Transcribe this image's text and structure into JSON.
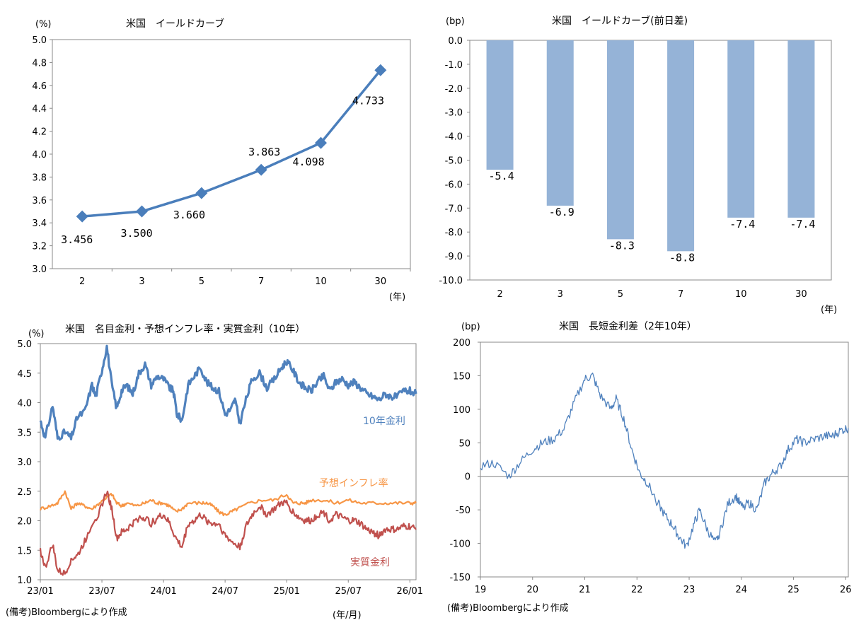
{
  "chart_data": [
    {
      "id": "yield_curve",
      "type": "line",
      "title": "米国　イールドカーブ",
      "ylabel": "(%)",
      "xlabel": "(年)",
      "categories": [
        "2",
        "3",
        "5",
        "7",
        "10",
        "30"
      ],
      "values": [
        3.456,
        3.5,
        3.66,
        3.863,
        4.098,
        4.733
      ],
      "data_labels": [
        "3.456",
        "3.500",
        "3.660",
        "3.863",
        "4.098",
        "4.733"
      ],
      "ylim": [
        3.0,
        5.0
      ],
      "yticks": [
        "3.0",
        "3.2",
        "3.4",
        "3.6",
        "3.8",
        "4.0",
        "4.2",
        "4.4",
        "4.6",
        "4.8",
        "5.0"
      ],
      "color": "#4a7ebb"
    },
    {
      "id": "yield_curve_change",
      "type": "bar",
      "title": "米国　イールドカーブ(前日差)",
      "ylabel": "(bp)",
      "xlabel": "(年)",
      "categories": [
        "2",
        "3",
        "5",
        "7",
        "10",
        "30"
      ],
      "values": [
        -5.4,
        -6.9,
        -8.3,
        -8.8,
        -7.4,
        -7.4
      ],
      "data_labels": [
        "-5.4",
        "-6.9",
        "-8.3",
        "-8.8",
        "-7.4",
        "-7.4"
      ],
      "ylim": [
        -10.0,
        0.0
      ],
      "yticks": [
        "0.0",
        "-1.0",
        "-2.0",
        "-3.0",
        "-4.0",
        "-5.0",
        "-6.0",
        "-7.0",
        "-8.0",
        "-9.0",
        "-10.0"
      ],
      "color": "#95b3d7"
    },
    {
      "id": "rates_10y",
      "type": "line",
      "title": "米国　名目金利・予想インフレ率・実質金利（10年）",
      "ylabel": "(%)",
      "xlabel": "(年/月)",
      "x_ticks": [
        "23/01",
        "23/07",
        "24/01",
        "24/07",
        "25/01",
        "25/07",
        "26/01"
      ],
      "ylim": [
        1.0,
        5.0
      ],
      "yticks": [
        "1.0",
        "1.5",
        "2.0",
        "2.5",
        "3.0",
        "3.5",
        "4.0",
        "4.5",
        "5.0"
      ],
      "series": [
        {
          "name": "10年金利",
          "color": "#4f81bd",
          "anchors": [
            [
              0,
              3.7
            ],
            [
              0.04,
              3.4
            ],
            [
              0.1,
              3.95
            ],
            [
              0.14,
              3.4
            ],
            [
              0.2,
              3.5
            ],
            [
              0.25,
              3.4
            ],
            [
              0.3,
              3.75
            ],
            [
              0.36,
              3.85
            ],
            [
              0.42,
              4.3
            ],
            [
              0.45,
              4.1
            ],
            [
              0.5,
              4.55
            ],
            [
              0.54,
              4.95
            ],
            [
              0.58,
              4.3
            ],
            [
              0.62,
              3.9
            ],
            [
              0.66,
              4.2
            ],
            [
              0.7,
              4.3
            ],
            [
              0.75,
              4.15
            ],
            [
              0.8,
              4.5
            ],
            [
              0.85,
              4.65
            ],
            [
              0.9,
              4.3
            ],
            [
              0.95,
              4.45
            ],
            [
              1.0,
              4.4
            ],
            [
              1.05,
              4.25
            ],
            [
              1.08,
              4.2
            ],
            [
              1.11,
              3.8
            ],
            [
              1.15,
              3.7
            ],
            [
              1.2,
              4.3
            ],
            [
              1.25,
              4.45
            ],
            [
              1.3,
              4.6
            ],
            [
              1.35,
              4.35
            ],
            [
              1.4,
              4.25
            ],
            [
              1.45,
              4.2
            ],
            [
              1.5,
              3.8
            ],
            [
              1.55,
              3.9
            ],
            [
              1.58,
              4.05
            ],
            [
              1.62,
              3.65
            ],
            [
              1.67,
              4.05
            ],
            [
              1.72,
              4.4
            ],
            [
              1.78,
              4.5
            ],
            [
              1.84,
              4.25
            ],
            [
              1.9,
              4.4
            ],
            [
              1.96,
              4.6
            ],
            [
              2.0,
              4.7
            ],
            [
              2.05,
              4.55
            ],
            [
              2.1,
              4.35
            ],
            [
              2.15,
              4.25
            ],
            [
              2.2,
              4.2
            ],
            [
              2.25,
              4.35
            ],
            [
              2.3,
              4.45
            ],
            [
              2.35,
              4.2
            ],
            [
              2.4,
              4.35
            ],
            [
              2.45,
              4.4
            ],
            [
              2.5,
              4.3
            ],
            [
              2.55,
              4.35
            ],
            [
              2.6,
              4.25
            ],
            [
              2.65,
              4.15
            ],
            [
              2.7,
              4.1
            ],
            [
              2.75,
              4.05
            ],
            [
              2.8,
              4.15
            ],
            [
              2.85,
              4.1
            ],
            [
              2.9,
              4.1
            ],
            [
              2.95,
              4.2
            ],
            [
              3.0,
              4.2
            ],
            [
              3.05,
              4.15
            ]
          ]
        },
        {
          "name": "予想インフレ率",
          "color": "#f79646",
          "anchors": [
            [
              0,
              2.2
            ],
            [
              0.08,
              2.25
            ],
            [
              0.14,
              2.3
            ],
            [
              0.2,
              2.5
            ],
            [
              0.25,
              2.2
            ],
            [
              0.3,
              2.3
            ],
            [
              0.36,
              2.25
            ],
            [
              0.42,
              2.2
            ],
            [
              0.48,
              2.3
            ],
            [
              0.54,
              2.4
            ],
            [
              0.58,
              2.45
            ],
            [
              0.62,
              2.3
            ],
            [
              0.66,
              2.25
            ],
            [
              0.7,
              2.3
            ],
            [
              0.78,
              2.25
            ],
            [
              0.85,
              2.3
            ],
            [
              0.9,
              2.35
            ],
            [
              0.95,
              2.3
            ],
            [
              1.0,
              2.3
            ],
            [
              1.05,
              2.25
            ],
            [
              1.1,
              2.15
            ],
            [
              1.15,
              2.2
            ],
            [
              1.2,
              2.3
            ],
            [
              1.3,
              2.3
            ],
            [
              1.35,
              2.3
            ],
            [
              1.4,
              2.25
            ],
            [
              1.45,
              2.15
            ],
            [
              1.5,
              2.1
            ],
            [
              1.55,
              2.15
            ],
            [
              1.6,
              2.2
            ],
            [
              1.7,
              2.3
            ],
            [
              1.8,
              2.35
            ],
            [
              1.9,
              2.35
            ],
            [
              2.0,
              2.45
            ],
            [
              2.05,
              2.3
            ],
            [
              2.1,
              2.3
            ],
            [
              2.15,
              2.3
            ],
            [
              2.2,
              2.35
            ],
            [
              2.3,
              2.35
            ],
            [
              2.4,
              2.3
            ],
            [
              2.5,
              2.35
            ],
            [
              2.6,
              2.3
            ],
            [
              2.7,
              2.3
            ],
            [
              2.8,
              2.3
            ],
            [
              2.9,
              2.3
            ],
            [
              3.0,
              2.3
            ],
            [
              3.05,
              2.3
            ]
          ]
        },
        {
          "name": "実質金利",
          "color": "#c0504d",
          "anchors": [
            [
              0,
              1.5
            ],
            [
              0.04,
              1.2
            ],
            [
              0.1,
              1.6
            ],
            [
              0.14,
              1.15
            ],
            [
              0.2,
              1.1
            ],
            [
              0.25,
              1.35
            ],
            [
              0.3,
              1.4
            ],
            [
              0.36,
              1.65
            ],
            [
              0.42,
              1.95
            ],
            [
              0.48,
              2.15
            ],
            [
              0.54,
              2.5
            ],
            [
              0.58,
              2.2
            ],
            [
              0.62,
              1.7
            ],
            [
              0.66,
              1.8
            ],
            [
              0.7,
              1.85
            ],
            [
              0.75,
              1.95
            ],
            [
              0.8,
              2.05
            ],
            [
              0.85,
              2.05
            ],
            [
              0.9,
              1.95
            ],
            [
              0.95,
              2.05
            ],
            [
              1.0,
              2.1
            ],
            [
              1.05,
              1.95
            ],
            [
              1.1,
              1.7
            ],
            [
              1.15,
              1.55
            ],
            [
              1.2,
              1.95
            ],
            [
              1.25,
              2.0
            ],
            [
              1.3,
              2.1
            ],
            [
              1.35,
              2.0
            ],
            [
              1.4,
              1.95
            ],
            [
              1.45,
              1.95
            ],
            [
              1.5,
              1.75
            ],
            [
              1.55,
              1.65
            ],
            [
              1.62,
              1.55
            ],
            [
              1.67,
              1.9
            ],
            [
              1.72,
              2.1
            ],
            [
              1.78,
              2.25
            ],
            [
              1.84,
              2.1
            ],
            [
              1.9,
              2.2
            ],
            [
              1.96,
              2.3
            ],
            [
              2.0,
              2.3
            ],
            [
              2.05,
              2.15
            ],
            [
              2.1,
              2.05
            ],
            [
              2.15,
              2.0
            ],
            [
              2.2,
              2.0
            ],
            [
              2.25,
              2.1
            ],
            [
              2.3,
              2.15
            ],
            [
              2.35,
              2.0
            ],
            [
              2.4,
              2.1
            ],
            [
              2.45,
              2.05
            ],
            [
              2.5,
              2.0
            ],
            [
              2.55,
              2.0
            ],
            [
              2.6,
              1.95
            ],
            [
              2.65,
              1.85
            ],
            [
              2.7,
              1.8
            ],
            [
              2.75,
              1.75
            ],
            [
              2.8,
              1.85
            ],
            [
              2.85,
              1.85
            ],
            [
              2.9,
              1.85
            ],
            [
              2.95,
              1.9
            ],
            [
              3.0,
              1.9
            ],
            [
              3.05,
              1.85
            ]
          ]
        }
      ]
    },
    {
      "id": "term_spread",
      "type": "line",
      "title": "米国　長短金利差（2年10年）",
      "ylabel": "(bp)",
      "x_ticks": [
        "19",
        "20",
        "21",
        "22",
        "23",
        "24",
        "25",
        "26"
      ],
      "ylim": [
        -150,
        200
      ],
      "yticks": [
        "200",
        "150",
        "100",
        "50",
        "0",
        "-50",
        "-100",
        "-150"
      ],
      "series": [
        {
          "name": "長短金利差",
          "color": "#4f81bd",
          "anchors": [
            [
              0,
              15
            ],
            [
              0.25,
              20
            ],
            [
              0.55,
              0
            ],
            [
              0.75,
              20
            ],
            [
              1.0,
              40
            ],
            [
              1.2,
              50
            ],
            [
              1.4,
              55
            ],
            [
              1.6,
              70
            ],
            [
              1.8,
              110
            ],
            [
              2.0,
              145
            ],
            [
              2.15,
              150
            ],
            [
              2.3,
              120
            ],
            [
              2.5,
              100
            ],
            [
              2.6,
              115
            ],
            [
              2.75,
              85
            ],
            [
              2.9,
              40
            ],
            [
              3.05,
              5
            ],
            [
              3.2,
              -10
            ],
            [
              3.4,
              -40
            ],
            [
              3.55,
              -60
            ],
            [
              3.7,
              -75
            ],
            [
              3.8,
              -90
            ],
            [
              3.95,
              -105
            ],
            [
              4.1,
              -70
            ],
            [
              4.2,
              -50
            ],
            [
              4.35,
              -80
            ],
            [
              4.5,
              -100
            ],
            [
              4.6,
              -80
            ],
            [
              4.75,
              -40
            ],
            [
              4.9,
              -30
            ],
            [
              5.0,
              -45
            ],
            [
              5.15,
              -40
            ],
            [
              5.3,
              -50
            ],
            [
              5.45,
              -10
            ],
            [
              5.6,
              5
            ],
            [
              5.75,
              15
            ],
            [
              5.9,
              40
            ],
            [
              6.05,
              55
            ],
            [
              6.2,
              50
            ],
            [
              6.4,
              55
            ],
            [
              6.6,
              60
            ],
            [
              6.75,
              60
            ],
            [
              6.9,
              68
            ],
            [
              7.05,
              72
            ]
          ]
        }
      ]
    }
  ],
  "notes": {
    "source_bottom_left": "(備考)Bloombergにより作成",
    "source_bottom_right": "(備考)Bloombergにより作成"
  }
}
